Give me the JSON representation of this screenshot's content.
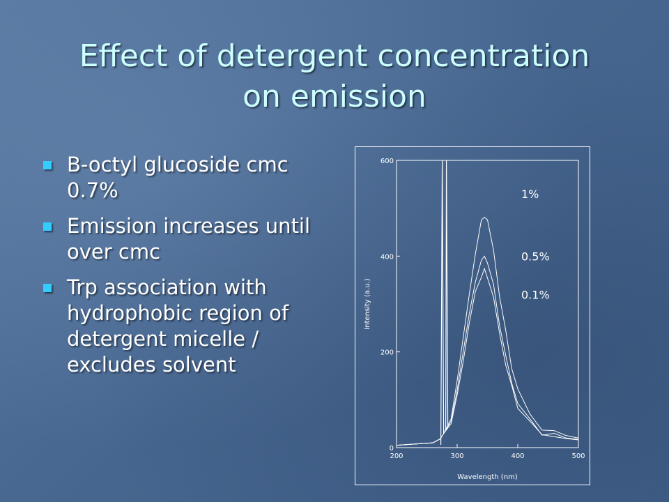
{
  "slide": {
    "title_line1": "Effect of detergent concentration",
    "title_line2": "on emission",
    "bullets": [
      {
        "text": "B-octyl glucoside cmc 0.7%"
      },
      {
        "text": "Emission increases until over cmc"
      },
      {
        "text": "Trp association with hydrophobic region of detergent micelle / excludes solvent"
      }
    ]
  },
  "colors": {
    "title": "#ccffff",
    "text": "#ffffff",
    "bullet": "#33ccff",
    "background": "#4a6a94"
  },
  "chart_data": {
    "type": "line",
    "xlabel": "Wavelength (nm)",
    "ylabel": "Intensity (a.u.)",
    "xlim": [
      200,
      500
    ],
    "ylim": [
      0,
      600
    ],
    "x_ticks": [
      "200",
      "300",
      "400",
      "500"
    ],
    "y_ticks": [
      "0",
      "200",
      "400",
      "600"
    ],
    "grid": false,
    "scatter_peak_x": 280,
    "series": [
      {
        "name": "1%",
        "x": [
          200,
          260,
          272,
          278,
          290,
          300,
          310,
          320,
          330,
          340,
          345,
          350,
          360,
          370,
          380,
          390,
          400,
          420,
          440,
          460,
          480,
          500
        ],
        "y": [
          5,
          10,
          18,
          30,
          60,
          140,
          230,
          320,
          410,
          470,
          485,
          475,
          410,
          320,
          240,
          170,
          120,
          70,
          40,
          30,
          25,
          20
        ]
      },
      {
        "name": "0.5%",
        "x": [
          200,
          260,
          272,
          278,
          290,
          300,
          310,
          320,
          330,
          340,
          345,
          350,
          360,
          370,
          380,
          390,
          400,
          420,
          440,
          460,
          480,
          500
        ],
        "y": [
          5,
          10,
          18,
          30,
          55,
          120,
          200,
          280,
          350,
          390,
          398,
          390,
          335,
          260,
          190,
          135,
          95,
          55,
          32,
          25,
          20,
          17
        ]
      },
      {
        "name": "0.1%",
        "x": [
          200,
          260,
          272,
          278,
          290,
          300,
          310,
          320,
          330,
          340,
          345,
          350,
          360,
          370,
          380,
          390,
          400,
          420,
          440,
          460,
          480,
          500
        ],
        "y": [
          5,
          10,
          18,
          30,
          50,
          110,
          180,
          260,
          325,
          360,
          368,
          360,
          310,
          240,
          175,
          125,
          88,
          50,
          30,
          23,
          19,
          16
        ]
      }
    ]
  }
}
